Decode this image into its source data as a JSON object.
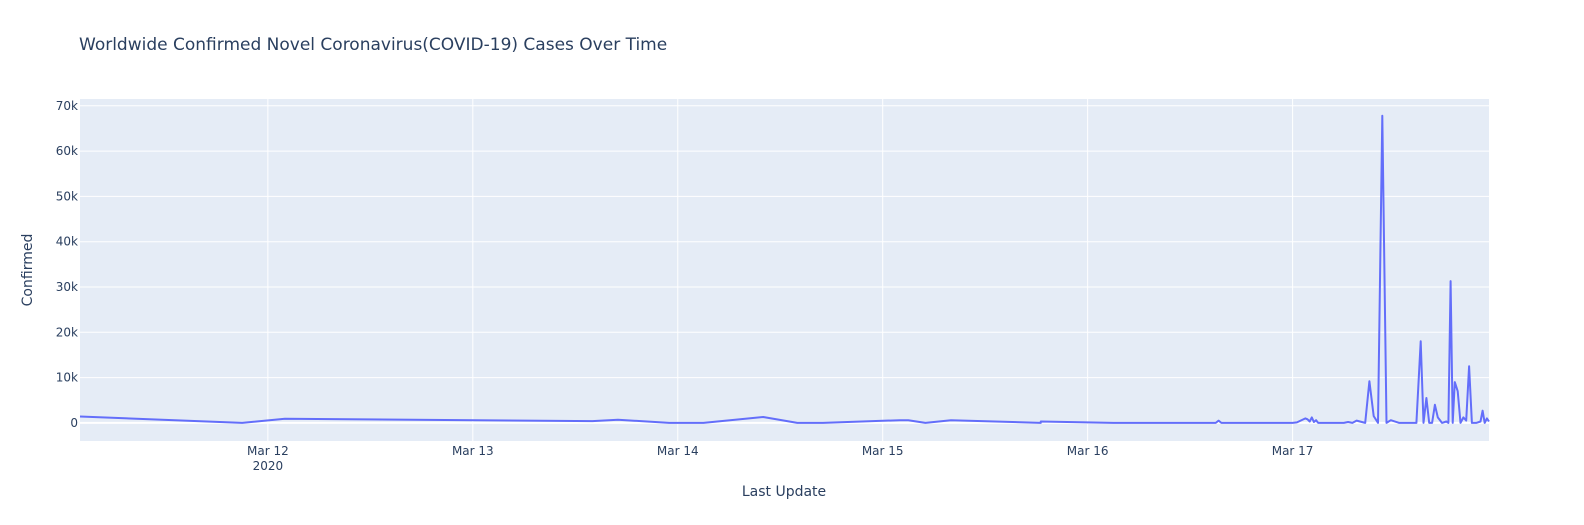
{
  "chart_data": {
    "type": "line",
    "title": "Worldwide Confirmed Novel Coronavirus(COVID-19) Cases Over Time",
    "xlabel": "Last Update",
    "ylabel": "Confirmed",
    "xlim": [
      "2020-03-11T02:00",
      "2020-03-17T23:00"
    ],
    "ylim": [
      -4000,
      71500
    ],
    "y_ticks": [
      0,
      10000,
      20000,
      30000,
      40000,
      50000,
      60000,
      70000
    ],
    "y_tick_labels": [
      "0",
      "10k",
      "20k",
      "30k",
      "40k",
      "50k",
      "60k",
      "70k"
    ],
    "x_ticks": [
      "2020-03-12T00:00",
      "2020-03-13T00:00",
      "2020-03-14T00:00",
      "2020-03-15T00:00",
      "2020-03-16T00:00",
      "2020-03-17T00:00"
    ],
    "x_tick_labels": [
      "Mar 12",
      "Mar 13",
      "Mar 14",
      "Mar 15",
      "Mar 16",
      "Mar 17"
    ],
    "x_tick_sublabel": "2020",
    "grid": true,
    "line_color": "#636efa",
    "plot_background": "#e5ecf6",
    "series": [
      {
        "x": [
          "2020-03-11T02:00",
          "2020-03-11T21:00",
          "2020-03-12T02:00",
          "2020-03-13T14:00",
          "2020-03-13T17:00",
          "2020-03-13T23:00",
          "2020-03-14T03:00",
          "2020-03-14T10:00",
          "2020-03-14T14:00",
          "2020-03-14T17:00",
          "2020-03-15T02:00",
          "2020-03-15T03:00",
          "2020-03-15T05:00",
          "2020-03-15T08:00",
          "2020-03-15T18:30",
          "2020-03-15T18:31",
          "2020-03-16T03:00",
          "2020-03-16T15:00",
          "2020-03-16T15:20",
          "2020-03-16T15:40",
          "2020-03-16T17:00",
          "2020-03-16T21:00",
          "2020-03-17T00:00",
          "2020-03-17T00:30",
          "2020-03-17T01:30",
          "2020-03-17T01:45",
          "2020-03-17T02:00",
          "2020-03-17T02:15",
          "2020-03-17T02:30",
          "2020-03-17T02:45",
          "2020-03-17T03:00",
          "2020-03-17T06:00",
          "2020-03-17T06:30",
          "2020-03-17T07:00",
          "2020-03-17T07:30",
          "2020-03-17T08:30",
          "2020-03-17T09:00",
          "2020-03-17T09:30",
          "2020-03-17T10:00",
          "2020-03-17T10:30",
          "2020-03-17T11:00",
          "2020-03-17T11:30",
          "2020-03-17T12:30",
          "2020-03-17T14:30",
          "2020-03-17T15:00",
          "2020-03-17T15:20",
          "2020-03-17T15:40",
          "2020-03-17T16:00",
          "2020-03-17T16:20",
          "2020-03-17T16:40",
          "2020-03-17T17:00",
          "2020-03-17T17:30",
          "2020-03-17T18:00",
          "2020-03-17T18:15",
          "2020-03-17T18:30",
          "2020-03-17T18:45",
          "2020-03-17T19:00",
          "2020-03-17T19:20",
          "2020-03-17T19:40",
          "2020-03-17T20:00",
          "2020-03-17T20:20",
          "2020-03-17T20:40",
          "2020-03-17T21:00",
          "2020-03-17T21:30",
          "2020-03-17T22:00",
          "2020-03-17T22:15",
          "2020-03-17T22:30",
          "2020-03-17T22:45",
          "2020-03-17T23:00"
        ],
        "y": [
          1400,
          0,
          900,
          400,
          700,
          0,
          0,
          1300,
          0,
          0,
          600,
          600,
          0,
          600,
          0,
          300,
          0,
          0,
          500,
          0,
          0,
          0,
          0,
          100,
          1000,
          800,
          300,
          1200,
          200,
          600,
          0,
          0,
          200,
          0,
          500,
          0,
          9200,
          1500,
          0,
          67800,
          0,
          600,
          0,
          0,
          18000,
          0,
          5500,
          0,
          0,
          4000,
          1200,
          0,
          300,
          0,
          31300,
          0,
          9000,
          7000,
          0,
          1200,
          500,
          12500,
          0,
          0,
          300,
          2700,
          0,
          1000,
          300
        ]
      }
    ]
  }
}
